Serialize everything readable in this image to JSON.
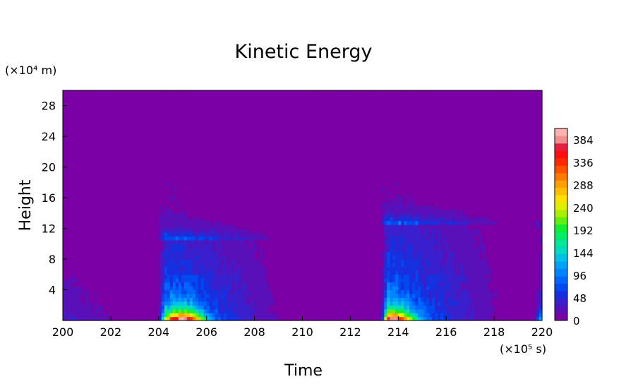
{
  "chart_data": {
    "type": "heatmap",
    "title": "Kinetic Energy",
    "xlabel": "Time",
    "ylabel": "Height",
    "x_unit": "(×10⁵ s)",
    "y_unit": "(×10⁴ m)",
    "xlim": [
      200,
      220
    ],
    "ylim": [
      0,
      30
    ],
    "x_ticks": [
      200,
      202,
      204,
      206,
      208,
      210,
      212,
      214,
      216,
      218,
      220
    ],
    "y_ticks": [
      4,
      8,
      12,
      16,
      20,
      24,
      28
    ],
    "colorbar": {
      "levels": [
        0,
        48,
        96,
        144,
        192,
        240,
        288,
        336,
        384
      ],
      "max": 408,
      "colors": [
        "#7a00a6",
        "#5a10b8",
        "#3a20cc",
        "#1630e0",
        "#0048f0",
        "#0066ff",
        "#0084ff",
        "#00a2f8",
        "#00c2e6",
        "#00dcc4",
        "#00e89a",
        "#00ee66",
        "#10f030",
        "#60f010",
        "#a8f000",
        "#e0ee00",
        "#ffe000",
        "#ffc000",
        "#ffa000",
        "#ff7800",
        "#ff5000",
        "#ff2a00",
        "#ff1010",
        "#e82040",
        "#f09090",
        "#ffb0b0"
      ]
    },
    "events": [
      {
        "onset": 204.0,
        "peak": 205.0,
        "peak_value": 390,
        "column_top": 10.5,
        "cloud_top": 18
      },
      {
        "onset": 213.3,
        "peak": 213.8,
        "peak_value": 380,
        "column_top": 12.5,
        "cloud_top": 19
      },
      {
        "onset": 219.7,
        "peak": 220.0,
        "peak_value": 120,
        "column_top": 12,
        "cloud_top": 13
      }
    ]
  }
}
